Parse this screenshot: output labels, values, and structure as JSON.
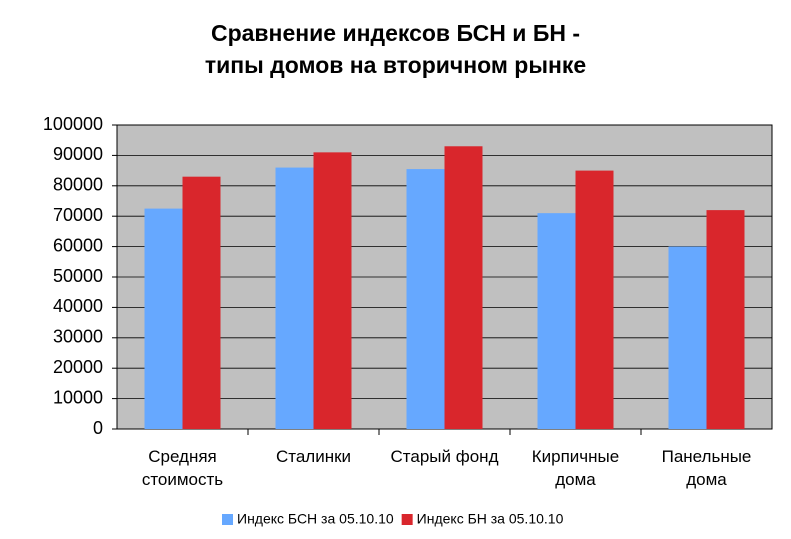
{
  "chart_data": {
    "type": "bar",
    "title": [
      "Сравнение индексов БСН и БН -",
      "типы домов на вторичном рынке"
    ],
    "categories": [
      "Средняя стоимость",
      "Сталинки",
      "Старый фонд",
      "Кирпичные дома",
      "Панельные дома"
    ],
    "series": [
      {
        "name": "Индекс БСН за 05.10.10",
        "color": "#66a8ff",
        "values": [
          72500,
          86000,
          85500,
          71000,
          60000
        ]
      },
      {
        "name": "Индекс БН за 05.10.10",
        "color": "#d9262c",
        "values": [
          83000,
          91000,
          93000,
          85000,
          72000
        ]
      }
    ],
    "ylim": [
      0,
      100000
    ],
    "yticks": [
      0,
      10000,
      20000,
      30000,
      40000,
      50000,
      60000,
      70000,
      80000,
      90000,
      100000
    ],
    "grid": true
  }
}
